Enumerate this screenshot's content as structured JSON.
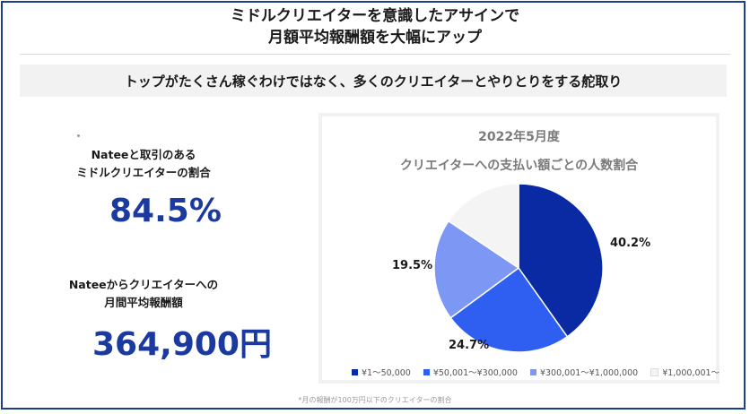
{
  "header": {
    "title_line1": "ミドルクリエイターを意識したアサインで",
    "title_line2": "月額平均報酬額を大幅にアップ"
  },
  "banner": {
    "text": "トップがたくさん稼ぐわけではなく、多くのクリエイターとやりとりをする舵取り"
  },
  "stats": {
    "ratio_label_line1": "Nateeと取引のある",
    "ratio_label_line2": "ミドルクリエイターの割合",
    "ratio_value": "84.5%",
    "avg_label_line1": "Nateeからクリエイターへの",
    "avg_label_line2": "月間平均報酬額",
    "avg_value": "364,900円"
  },
  "footnote": "*月の報酬が100万円以下のクリエイターの割合",
  "chart_data": {
    "type": "pie",
    "title": "2022年5月度",
    "subtitle": "クリエイターへの支払い額ごとの人数割合",
    "categories": [
      "¥1～50,000",
      "¥50,001～¥300,000",
      "¥300,001～¥1,000,000",
      "¥1,000,001～"
    ],
    "values": [
      40.2,
      24.7,
      19.5,
      15.6
    ],
    "data_labels": [
      "40.2%",
      "24.7%",
      "19.5%",
      ""
    ],
    "colors": [
      "#0a2aa3",
      "#2e5ff0",
      "#7d97f4",
      "#f4f4f4"
    ],
    "legend_position": "bottom",
    "start_angle": "12 o'clock, clockwise"
  }
}
